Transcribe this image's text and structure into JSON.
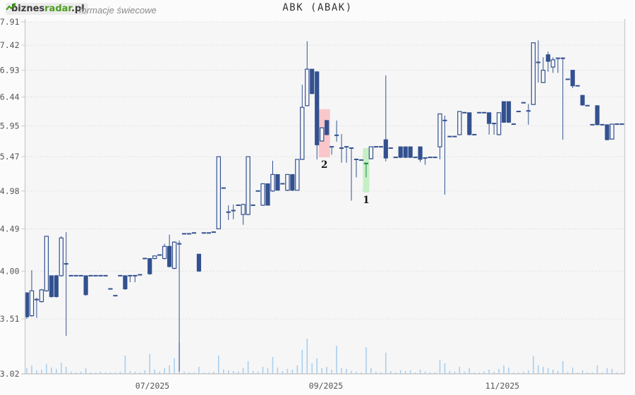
{
  "header": {
    "logo": {
      "prefix": "biznes",
      "accent": "radar",
      "suffix": ".pl"
    },
    "subtitle": "formacje świecowe",
    "title": "ABK (ABAK)"
  },
  "colors": {
    "candle": "#33518f",
    "green_candle": "#1e8449",
    "volume": "#a9cfed",
    "grid": "#d9d9d9",
    "axis": "#c9c9c9",
    "tick_text": "#555555",
    "plot_bg": "#f6f6f7",
    "formation_bearish_bg": "#f9c7cb",
    "formation_bullish_bg": "#c6f0c4",
    "formation_label": "#151515"
  },
  "axis": {
    "y_ticks": [
      "7.91",
      "7.42",
      "6.93",
      "6.44",
      "5.95",
      "5.47",
      "4.98",
      "4.49",
      "4.00",
      "3.51",
      "3.02"
    ],
    "x_ticks": [
      {
        "label": "07/2025",
        "x": 216
      },
      {
        "label": "09/2025",
        "x": 462
      },
      {
        "label": "11/2025",
        "x": 712
      }
    ]
  },
  "chart_data": {
    "type": "candlestick",
    "title": "ABK (ABAK)",
    "y_scale": "log",
    "y_range": [
      3.02,
      7.91
    ],
    "grid": "dotted-horizontal",
    "ohlc_order": [
      "open",
      "high",
      "low",
      "close",
      "volume_px",
      "flag"
    ],
    "candles": [
      [
        3.77,
        3.77,
        3.51,
        3.53,
        8
      ],
      [
        3.54,
        4.01,
        3.53,
        3.79,
        12
      ],
      [
        3.7,
        3.72,
        3.52,
        3.7,
        5
      ],
      [
        3.68,
        3.81,
        3.67,
        3.8,
        6
      ],
      [
        3.79,
        4.4,
        3.78,
        4.4,
        14
      ],
      [
        3.95,
        3.95,
        3.72,
        3.73,
        9
      ],
      [
        3.95,
        3.96,
        3.72,
        3.73,
        7
      ],
      [
        3.95,
        4.4,
        3.94,
        4.38,
        16
      ],
      [
        4.08,
        4.45,
        3.35,
        4.08,
        10
      ],
      [
        3.95,
        3.95,
        3.95,
        3.95,
        3
      ],
      [
        3.95,
        3.95,
        3.95,
        3.95,
        2
      ],
      [
        3.95,
        3.95,
        3.95,
        3.95,
        3
      ],
      [
        3.95,
        3.95,
        3.74,
        3.75,
        8
      ],
      [
        3.95,
        3.95,
        3.95,
        3.95,
        2
      ],
      [
        3.95,
        3.95,
        3.95,
        3.95,
        2
      ],
      [
        3.95,
        3.95,
        3.95,
        3.95,
        3
      ],
      [
        3.95,
        3.95,
        3.95,
        3.95,
        2
      ],
      [
        3.81,
        3.81,
        3.81,
        3.81,
        2
      ],
      [
        3.74,
        3.74,
        3.74,
        3.74,
        2
      ],
      [
        3.95,
        3.95,
        3.95,
        3.95,
        3
      ],
      [
        3.95,
        3.95,
        3.8,
        3.81,
        26
      ],
      [
        3.95,
        3.95,
        3.88,
        3.95,
        4
      ],
      [
        3.95,
        3.95,
        3.88,
        3.95,
        3
      ],
      [
        3.96,
        3.96,
        3.96,
        3.96,
        2
      ],
      [
        4.14,
        4.14,
        4.14,
        4.14,
        5
      ],
      [
        4.14,
        4.14,
        3.96,
        3.97,
        28
      ],
      [
        4.14,
        4.17,
        4.13,
        4.17,
        6
      ],
      [
        4.18,
        4.18,
        4.18,
        4.18,
        3
      ],
      [
        4.14,
        4.31,
        4.13,
        4.28,
        8
      ],
      [
        4.28,
        4.42,
        4.04,
        4.05,
        12
      ],
      [
        4.03,
        4.34,
        4.02,
        4.33,
        22
      ],
      [
        4.31,
        4.35,
        3.04,
        4.31,
        44
      ],
      [
        4.43,
        4.43,
        4.43,
        4.43,
        3
      ],
      [
        4.43,
        4.43,
        4.43,
        4.43,
        2
      ],
      [
        4.44,
        4.44,
        4.44,
        4.44,
        2
      ],
      [
        4.19,
        4.19,
        3.99,
        4.0,
        10
      ],
      [
        4.44,
        4.44,
        4.44,
        4.44,
        2
      ],
      [
        4.44,
        4.44,
        4.44,
        4.44,
        2
      ],
      [
        4.45,
        4.45,
        4.45,
        4.45,
        3
      ],
      [
        4.49,
        5.47,
        4.49,
        5.47,
        26
      ],
      [
        5.02,
        5.02,
        5.02,
        5.02,
        6
      ],
      [
        4.7,
        4.79,
        4.6,
        4.7,
        5
      ],
      [
        4.72,
        4.8,
        4.61,
        4.72,
        4
      ],
      [
        4.79,
        4.79,
        4.79,
        4.79,
        3
      ],
      [
        4.67,
        4.81,
        4.54,
        4.8,
        8
      ],
      [
        4.67,
        5.47,
        4.66,
        5.47,
        18
      ],
      [
        4.79,
        4.79,
        4.79,
        4.79,
        4
      ],
      [
        4.98,
        4.98,
        4.98,
        4.98,
        3
      ],
      [
        4.79,
        5.08,
        4.78,
        5.08,
        10
      ],
      [
        5.08,
        5.08,
        4.79,
        4.79,
        8
      ],
      [
        4.98,
        5.41,
        4.97,
        5.21,
        24
      ],
      [
        5.21,
        5.21,
        4.99,
        4.99,
        9
      ],
      [
        5.08,
        5.08,
        5.08,
        5.08,
        4
      ],
      [
        4.99,
        5.21,
        4.98,
        5.21,
        7
      ],
      [
        5.21,
        5.21,
        4.98,
        4.99,
        6
      ],
      [
        4.99,
        5.43,
        4.99,
        5.43,
        12
      ],
      [
        5.43,
        6.66,
        5.42,
        6.26,
        34
      ],
      [
        6.29,
        7.5,
        6.28,
        6.95,
        50
      ],
      [
        6.95,
        6.95,
        6.49,
        6.5,
        15
      ],
      [
        6.9,
        6.91,
        5.43,
        5.65,
        22
      ],
      [
        5.71,
        5.92,
        5.7,
        5.92,
        8
      ],
      [
        6.04,
        6.04,
        5.8,
        5.81,
        10
      ],
      [
        5.62,
        5.62,
        5.5,
        5.62,
        6
      ],
      [
        5.8,
        6.04,
        5.7,
        5.8,
        40
      ],
      [
        5.6,
        5.82,
        5.38,
        5.6,
        8
      ],
      [
        5.62,
        5.62,
        5.38,
        5.62,
        7
      ],
      [
        5.6,
        5.6,
        4.85,
        5.6,
        4
      ],
      [
        5.43,
        5.43,
        5.17,
        5.43,
        3
      ],
      [
        5.42,
        5.42,
        5.42,
        5.42,
        2
      ],
      [
        5.37,
        5.37,
        5.17,
        5.37,
        38,
        "g"
      ],
      [
        5.44,
        5.62,
        5.43,
        5.62,
        8
      ],
      [
        5.62,
        5.62,
        5.62,
        5.62,
        3
      ],
      [
        5.62,
        5.62,
        5.62,
        5.62,
        2
      ],
      [
        5.73,
        6.83,
        5.4,
        5.45,
        30
      ],
      [
        5.6,
        5.6,
        5.6,
        5.6,
        4
      ],
      [
        5.46,
        5.46,
        5.46,
        5.46,
        2
      ],
      [
        5.62,
        5.62,
        5.45,
        5.46,
        5
      ],
      [
        5.62,
        5.62,
        5.45,
        5.46,
        4
      ],
      [
        5.62,
        5.62,
        5.45,
        5.46,
        5
      ],
      [
        5.46,
        5.46,
        5.46,
        5.46,
        2
      ],
      [
        5.62,
        5.62,
        5.39,
        5.43,
        6
      ],
      [
        5.45,
        5.45,
        5.35,
        5.45,
        3
      ],
      [
        5.46,
        5.46,
        5.46,
        5.46,
        2
      ],
      [
        5.46,
        5.46,
        5.46,
        5.46,
        2
      ],
      [
        5.62,
        6.15,
        5.43,
        6.15,
        20
      ],
      [
        6.04,
        6.12,
        4.93,
        6.04,
        15
      ],
      [
        5.78,
        5.78,
        5.78,
        5.78,
        4
      ],
      [
        5.78,
        5.78,
        5.78,
        5.78,
        3
      ],
      [
        5.81,
        6.19,
        5.8,
        6.19,
        10
      ],
      [
        6.17,
        6.17,
        6.17,
        6.17,
        3
      ],
      [
        6.17,
        6.17,
        5.8,
        5.81,
        8
      ],
      [
        5.81,
        5.81,
        5.81,
        5.81,
        2
      ],
      [
        6.17,
        6.17,
        6.17,
        6.17,
        2
      ],
      [
        6.17,
        6.17,
        6.17,
        6.17,
        3
      ],
      [
        6.17,
        6.17,
        5.81,
        5.99,
        6
      ],
      [
        5.99,
        5.99,
        5.81,
        5.99,
        3
      ],
      [
        5.81,
        6.17,
        5.8,
        6.17,
        7
      ],
      [
        6.36,
        6.36,
        6.0,
        6.01,
        12
      ],
      [
        6.36,
        6.36,
        6.0,
        6.01,
        9
      ],
      [
        5.98,
        5.98,
        5.98,
        5.98,
        2
      ],
      [
        6.19,
        6.19,
        6.19,
        6.19,
        2
      ],
      [
        6.34,
        6.34,
        6.34,
        6.34,
        3
      ],
      [
        6.2,
        6.32,
        5.97,
        6.2,
        5
      ],
      [
        6.31,
        7.47,
        6.3,
        7.47,
        25
      ],
      [
        7.08,
        7.52,
        6.7,
        7.08,
        12
      ],
      [
        6.7,
        7.18,
        6.69,
        6.93,
        10
      ],
      [
        7.23,
        7.29,
        6.9,
        7.1,
        8
      ],
      [
        6.99,
        7.18,
        6.88,
        7.13,
        6
      ],
      [
        7.16,
        7.16,
        6.88,
        7.16,
        4
      ],
      [
        7.16,
        7.18,
        5.73,
        7.16,
        18
      ],
      [
        6.76,
        6.76,
        6.76,
        6.76,
        3
      ],
      [
        6.93,
        6.93,
        6.6,
        6.64,
        9
      ],
      [
        6.64,
        6.64,
        6.64,
        6.64,
        2
      ],
      [
        6.47,
        6.47,
        6.29,
        6.3,
        5
      ],
      [
        6.29,
        6.29,
        6.29,
        6.29,
        2
      ],
      [
        5.97,
        5.97,
        5.97,
        5.97,
        2
      ],
      [
        6.29,
        6.29,
        5.96,
        5.97,
        12
      ],
      [
        5.97,
        5.97,
        5.97,
        5.97,
        2
      ],
      [
        5.97,
        5.97,
        5.72,
        5.73,
        8
      ],
      [
        5.74,
        5.98,
        5.73,
        5.98,
        7
      ],
      [
        5.98,
        5.98,
        5.98,
        5.98,
        2
      ],
      [
        5.98,
        5.98,
        5.98,
        5.98,
        2
      ]
    ],
    "formations": [
      {
        "label": "2",
        "from": 60,
        "to": 61,
        "top": 6.23,
        "bottom": 5.46,
        "kind": "bearish"
      },
      {
        "label": "1",
        "from": 69,
        "to": 69,
        "top": 5.6,
        "bottom": 4.96,
        "kind": "bullish"
      }
    ]
  }
}
